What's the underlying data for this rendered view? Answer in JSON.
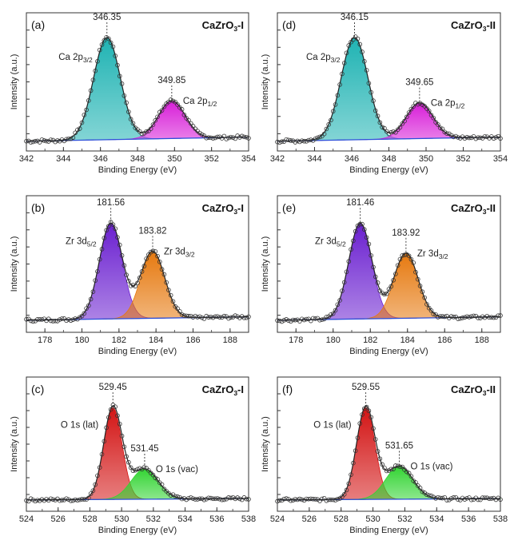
{
  "chart_data": [
    {
      "id": "a",
      "type": "line",
      "panel_label": "(a)",
      "sample": "CaZrO",
      "sample_sub": "3",
      "sample_suffix": "-I",
      "xlabel": "Binding Energy (eV)",
      "ylabel": "Intensity (a.u.)",
      "xlim": [
        342,
        354
      ],
      "xticks": [
        342,
        344,
        346,
        348,
        350,
        352,
        354
      ],
      "y_ticks_labeled": false,
      "background": [
        [
          342,
          0.02
        ],
        [
          354,
          0.1
        ]
      ],
      "peaks": [
        {
          "name": "Ca 2p",
          "sub": "3/2",
          "center": 346.35,
          "height": 1.0,
          "width": 0.72,
          "color": "#1fb3b3",
          "label_value": "346.35"
        },
        {
          "name": "Ca 2p",
          "sub": "1/2",
          "center": 349.85,
          "height": 0.37,
          "width": 0.72,
          "color": "#d81ed8",
          "label_value": "349.85"
        }
      ]
    },
    {
      "id": "b",
      "type": "line",
      "panel_label": "(b)",
      "sample": "CaZrO",
      "sample_sub": "3",
      "sample_suffix": "-I",
      "xlabel": "Binding Energy (eV)",
      "ylabel": "Intensity (a.u.)",
      "xlim": [
        177,
        189
      ],
      "xticks": [
        178,
        180,
        182,
        184,
        186,
        188
      ],
      "y_ticks_labeled": false,
      "background": [
        [
          177,
          0.02
        ],
        [
          189,
          0.09
        ]
      ],
      "peaks": [
        {
          "name": "Zr 3d",
          "sub": "5/2",
          "center": 181.56,
          "height": 1.0,
          "width": 0.62,
          "color": "#6a1fd0",
          "label_value": "181.56"
        },
        {
          "name": "Zr 3d",
          "sub": "3/2",
          "center": 183.82,
          "height": 0.7,
          "width": 0.65,
          "color": "#e6790f",
          "label_value": "183.82"
        }
      ]
    },
    {
      "id": "c",
      "type": "line",
      "panel_label": "(c)",
      "sample": "CaZrO",
      "sample_sub": "3",
      "sample_suffix": "-I",
      "xlabel": "Binding Energy (eV)",
      "ylabel": "Intensity (a.u.)",
      "xlim": [
        524,
        538
      ],
      "xticks": [
        524,
        526,
        528,
        530,
        532,
        534,
        536,
        538
      ],
      "y_ticks_labeled": false,
      "background": [
        [
          524,
          0.02
        ],
        [
          538,
          0.05
        ]
      ],
      "peaks": [
        {
          "name": "O 1s (lat)",
          "sub": "",
          "center": 529.45,
          "height": 1.0,
          "width": 0.58,
          "color": "#d31515",
          "label_value": "529.45"
        },
        {
          "name": "O 1s (vac)",
          "sub": "",
          "center": 531.45,
          "height": 0.33,
          "width": 0.85,
          "color": "#33d433",
          "label_value": "531.45"
        }
      ]
    },
    {
      "id": "d",
      "type": "line",
      "panel_label": "(d)",
      "sample": "CaZrO",
      "sample_sub": "3",
      "sample_suffix": "-II",
      "xlabel": "Binding Energy (eV)",
      "ylabel": "Intensity (a.u.)",
      "xlim": [
        342,
        354
      ],
      "xticks": [
        342,
        344,
        346,
        348,
        350,
        352,
        354
      ],
      "y_ticks_labeled": false,
      "background": [
        [
          342,
          0.02
        ],
        [
          354,
          0.1
        ]
      ],
      "peaks": [
        {
          "name": "Ca 2p",
          "sub": "3/2",
          "center": 346.15,
          "height": 1.0,
          "width": 0.72,
          "color": "#1fb3b3",
          "label_value": "346.15"
        },
        {
          "name": "Ca 2p",
          "sub": "1/2",
          "center": 349.65,
          "height": 0.35,
          "width": 0.72,
          "color": "#d81ed8",
          "label_value": "349.65"
        }
      ]
    },
    {
      "id": "e",
      "type": "line",
      "panel_label": "(e)",
      "sample": "CaZrO",
      "sample_sub": "3",
      "sample_suffix": "-II",
      "xlabel": "Binding Energy (eV)",
      "ylabel": "Intensity (a.u.)",
      "xlim": [
        177,
        189
      ],
      "xticks": [
        178,
        180,
        182,
        184,
        186,
        188
      ],
      "y_ticks_labeled": false,
      "background": [
        [
          177,
          0.02
        ],
        [
          189,
          0.09
        ]
      ],
      "peaks": [
        {
          "name": "Zr 3d",
          "sub": "5/2",
          "center": 181.46,
          "height": 1.0,
          "width": 0.62,
          "color": "#6a1fd0",
          "label_value": "181.46"
        },
        {
          "name": "Zr 3d",
          "sub": "3/2",
          "center": 183.92,
          "height": 0.68,
          "width": 0.65,
          "color": "#e6790f",
          "label_value": "183.92"
        }
      ]
    },
    {
      "id": "f",
      "type": "line",
      "panel_label": "(f)",
      "sample": "CaZrO",
      "sample_sub": "3",
      "sample_suffix": "-II",
      "xlabel": "Binding Energy (eV)",
      "ylabel": "Intensity (a.u.)",
      "xlim": [
        524,
        538
      ],
      "xticks": [
        524,
        526,
        528,
        530,
        532,
        534,
        536,
        538
      ],
      "y_ticks_labeled": false,
      "background": [
        [
          524,
          0.02
        ],
        [
          538,
          0.05
        ]
      ],
      "peaks": [
        {
          "name": "O 1s (lat)",
          "sub": "",
          "center": 529.55,
          "height": 1.0,
          "width": 0.58,
          "color": "#d31515",
          "label_value": "529.55"
        },
        {
          "name": "O 1s (vac)",
          "sub": "",
          "center": 531.65,
          "height": 0.36,
          "width": 0.85,
          "color": "#33d433",
          "label_value": "531.65"
        }
      ]
    }
  ]
}
